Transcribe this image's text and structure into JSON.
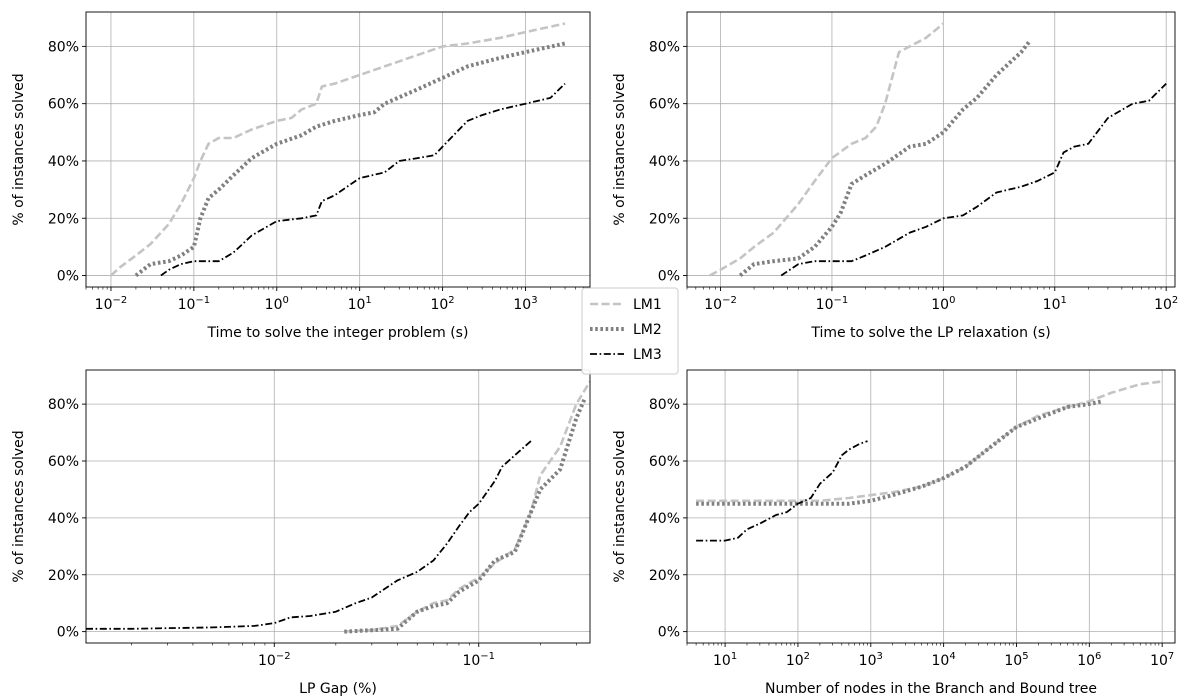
{
  "legend": {
    "placement": "center",
    "entries": [
      {
        "label": "LM1",
        "color": "#c4c4c4",
        "dash": "dashed"
      },
      {
        "label": "LM2",
        "color": "#808080",
        "dash": "dotted"
      },
      {
        "label": "LM3",
        "color": "#000000",
        "dash": "dashdot"
      }
    ]
  },
  "chart_data": [
    {
      "type": "line",
      "xlabel": "Time to solve the integer problem (s)",
      "ylabel": "% of instances solved",
      "x_scale": "log",
      "xlim": [
        0.005,
        6000
      ],
      "ylim": [
        -4,
        92
      ],
      "x_ticks": [
        {
          "v": 0.01,
          "b": "10",
          "e": "−2"
        },
        {
          "v": 0.1,
          "b": "10",
          "e": "−1"
        },
        {
          "v": 1,
          "b": "10",
          "e": "0"
        },
        {
          "v": 10,
          "b": "10",
          "e": "1"
        },
        {
          "v": 100,
          "b": "10",
          "e": "2"
        },
        {
          "v": 1000,
          "b": "10",
          "e": "3"
        }
      ],
      "y_ticks": [
        {
          "v": 0,
          "label": "0%"
        },
        {
          "v": 20,
          "label": "20%"
        },
        {
          "v": 40,
          "label": "40%"
        },
        {
          "v": 60,
          "label": "60%"
        },
        {
          "v": 80,
          "label": "80%"
        }
      ],
      "grid": true,
      "series": [
        {
          "name": "LM1",
          "x": [
            0.01,
            0.013,
            0.02,
            0.03,
            0.05,
            0.07,
            0.1,
            0.12,
            0.15,
            0.2,
            0.3,
            0.5,
            0.8,
            1,
            1.5,
            2,
            3,
            3.5,
            5,
            10,
            20,
            50,
            100,
            200,
            500,
            1000,
            3000
          ],
          "y": [
            0,
            3,
            7,
            11,
            18,
            25,
            34,
            40,
            46,
            48,
            48,
            51,
            53,
            54,
            55,
            58,
            60,
            66,
            67,
            70,
            73,
            77,
            80,
            81,
            83,
            85,
            88
          ]
        },
        {
          "name": "LM2",
          "x": [
            0.02,
            0.03,
            0.05,
            0.07,
            0.1,
            0.12,
            0.15,
            0.2,
            0.3,
            0.5,
            1,
            2,
            3,
            5,
            10,
            15,
            20,
            50,
            100,
            200,
            500,
            1000,
            3000
          ],
          "y": [
            0,
            4,
            5,
            7,
            10,
            20,
            27,
            30,
            35,
            41,
            46,
            49,
            52,
            54,
            56,
            57,
            60,
            65,
            69,
            73,
            76,
            78,
            81
          ]
        },
        {
          "name": "LM3",
          "x": [
            0.04,
            0.05,
            0.07,
            0.1,
            0.2,
            0.3,
            0.5,
            1,
            2,
            3,
            3.5,
            5,
            10,
            20,
            30,
            50,
            80,
            100,
            200,
            300,
            500,
            1000,
            2000,
            3000
          ],
          "y": [
            0,
            2,
            4,
            5,
            5,
            8,
            14,
            19,
            20,
            21,
            26,
            28,
            34,
            36,
            40,
            41,
            42,
            45,
            54,
            56,
            58,
            60,
            62,
            67
          ]
        }
      ]
    },
    {
      "type": "line",
      "xlabel": "Time to solve the LP relaxation (s)",
      "ylabel": "% of instances solved",
      "x_scale": "log",
      "xlim": [
        0.005,
        120
      ],
      "ylim": [
        -4,
        92
      ],
      "x_ticks": [
        {
          "v": 0.01,
          "b": "10",
          "e": "−2"
        },
        {
          "v": 0.1,
          "b": "10",
          "e": "−1"
        },
        {
          "v": 1,
          "b": "10",
          "e": "0"
        },
        {
          "v": 10,
          "b": "10",
          "e": "1"
        },
        {
          "v": 100,
          "b": "10",
          "e": "2"
        }
      ],
      "y_ticks": [
        {
          "v": 0,
          "label": "0%"
        },
        {
          "v": 20,
          "label": "20%"
        },
        {
          "v": 40,
          "label": "40%"
        },
        {
          "v": 60,
          "label": "60%"
        },
        {
          "v": 80,
          "label": "80%"
        }
      ],
      "grid": true,
      "series": [
        {
          "name": "LM1",
          "x": [
            0.008,
            0.01,
            0.015,
            0.02,
            0.03,
            0.05,
            0.07,
            0.1,
            0.15,
            0.2,
            0.25,
            0.3,
            0.4,
            0.5,
            0.7,
            1
          ],
          "y": [
            0,
            2,
            6,
            10,
            15,
            25,
            33,
            41,
            46,
            48,
            52,
            60,
            78,
            80,
            83,
            88
          ]
        },
        {
          "name": "LM2",
          "x": [
            0.015,
            0.02,
            0.03,
            0.05,
            0.07,
            0.1,
            0.12,
            0.15,
            0.2,
            0.3,
            0.5,
            0.7,
            1,
            1.5,
            2,
            3,
            5,
            6
          ],
          "y": [
            0,
            4,
            5,
            6,
            10,
            17,
            22,
            32,
            35,
            39,
            45,
            46,
            50,
            58,
            62,
            70,
            78,
            82
          ]
        },
        {
          "name": "LM3",
          "x": [
            0.035,
            0.05,
            0.07,
            0.1,
            0.15,
            0.2,
            0.3,
            0.5,
            0.7,
            1,
            1.5,
            2,
            3,
            5,
            7,
            10,
            12,
            15,
            20,
            30,
            50,
            70,
            100
          ],
          "y": [
            0,
            4,
            5,
            5,
            5,
            7,
            10,
            15,
            17,
            20,
            21,
            24,
            29,
            31,
            33,
            36,
            43,
            45,
            46,
            55,
            60,
            61,
            67
          ]
        }
      ]
    },
    {
      "type": "line",
      "xlabel": "LP Gap (%)",
      "ylabel": "% of instances solved",
      "x_scale": "log",
      "xlim": [
        0.0012,
        0.35
      ],
      "ylim": [
        -4,
        92
      ],
      "x_ticks": [
        {
          "v": 0.01,
          "b": "10",
          "e": "−2"
        },
        {
          "v": 0.1,
          "b": "10",
          "e": "−1"
        }
      ],
      "y_ticks": [
        {
          "v": 0,
          "label": "0%"
        },
        {
          "v": 20,
          "label": "20%"
        },
        {
          "v": 40,
          "label": "40%"
        },
        {
          "v": 60,
          "label": "60%"
        },
        {
          "v": 80,
          "label": "80%"
        }
      ],
      "grid": true,
      "series": [
        {
          "name": "LM1",
          "x": [
            0.022,
            0.03,
            0.04,
            0.05,
            0.06,
            0.07,
            0.08,
            0.1,
            0.12,
            0.15,
            0.18,
            0.2,
            0.25,
            0.3,
            0.35
          ],
          "y": [
            0,
            0.5,
            2,
            7,
            10,
            11,
            15,
            19,
            24,
            29,
            42,
            55,
            65,
            80,
            88
          ]
        },
        {
          "name": "LM2",
          "x": [
            0.022,
            0.03,
            0.04,
            0.05,
            0.06,
            0.07,
            0.08,
            0.1,
            0.12,
            0.15,
            0.18,
            0.2,
            0.25,
            0.3,
            0.33
          ],
          "y": [
            0,
            0.5,
            1,
            7,
            9,
            10,
            14,
            18,
            25,
            28,
            42,
            50,
            57,
            75,
            82
          ]
        },
        {
          "name": "LM3",
          "x": [
            0.0012,
            0.002,
            0.005,
            0.008,
            0.01,
            0.012,
            0.015,
            0.02,
            0.025,
            0.03,
            0.04,
            0.05,
            0.06,
            0.07,
            0.08,
            0.09,
            0.1,
            0.12,
            0.13,
            0.15,
            0.18
          ],
          "y": [
            1,
            1,
            1.5,
            2,
            3,
            5,
            5.5,
            7,
            10,
            12,
            18,
            21,
            25,
            31,
            37,
            42,
            45,
            53,
            58,
            62,
            67
          ]
        }
      ]
    },
    {
      "type": "line",
      "xlabel": "Number of nodes in the Branch and Bound tree",
      "ylabel": "% of instances solved",
      "x_scale": "log",
      "xlim": [
        3,
        15000000
      ],
      "ylim": [
        -4,
        92
      ],
      "x_ticks": [
        {
          "v": 10,
          "b": "10",
          "e": "1"
        },
        {
          "v": 100,
          "b": "10",
          "e": "2"
        },
        {
          "v": 1000,
          "b": "10",
          "e": "3"
        },
        {
          "v": 10000,
          "b": "10",
          "e": "4"
        },
        {
          "v": 100000,
          "b": "10",
          "e": "5"
        },
        {
          "v": 1000000,
          "b": "10",
          "e": "6"
        },
        {
          "v": 10000000,
          "b": "10",
          "e": "7"
        }
      ],
      "y_ticks": [
        {
          "v": 0,
          "label": "0%"
        },
        {
          "v": 20,
          "label": "20%"
        },
        {
          "v": 40,
          "label": "40%"
        },
        {
          "v": 60,
          "label": "60%"
        },
        {
          "v": 80,
          "label": "80%"
        }
      ],
      "grid": true,
      "series": [
        {
          "name": "LM1",
          "x": [
            4,
            10,
            100,
            200,
            500,
            1000,
            2000,
            5000,
            10000,
            20000,
            50000,
            100000,
            200000,
            500000,
            1000000,
            2000000,
            5000000,
            10000000
          ],
          "y": [
            46,
            46,
            46,
            46,
            47,
            48,
            49,
            51,
            54,
            58,
            66,
            72,
            76,
            79,
            81,
            84,
            87,
            88
          ]
        },
        {
          "name": "LM2",
          "x": [
            4,
            10,
            100,
            200,
            500,
            1000,
            2000,
            5000,
            10000,
            20000,
            50000,
            100000,
            200000,
            500000,
            1000000,
            1500000
          ],
          "y": [
            45,
            45,
            45,
            45,
            45,
            46,
            48,
            51,
            54,
            58,
            66,
            72,
            75,
            79,
            80,
            81
          ]
        },
        {
          "name": "LM3",
          "x": [
            4,
            10,
            15,
            20,
            30,
            50,
            70,
            100,
            150,
            200,
            300,
            400,
            500,
            700,
            900
          ],
          "y": [
            32,
            32,
            33,
            36,
            38,
            41,
            42,
            45,
            47,
            52,
            56,
            62,
            64,
            66,
            67
          ]
        }
      ]
    }
  ]
}
